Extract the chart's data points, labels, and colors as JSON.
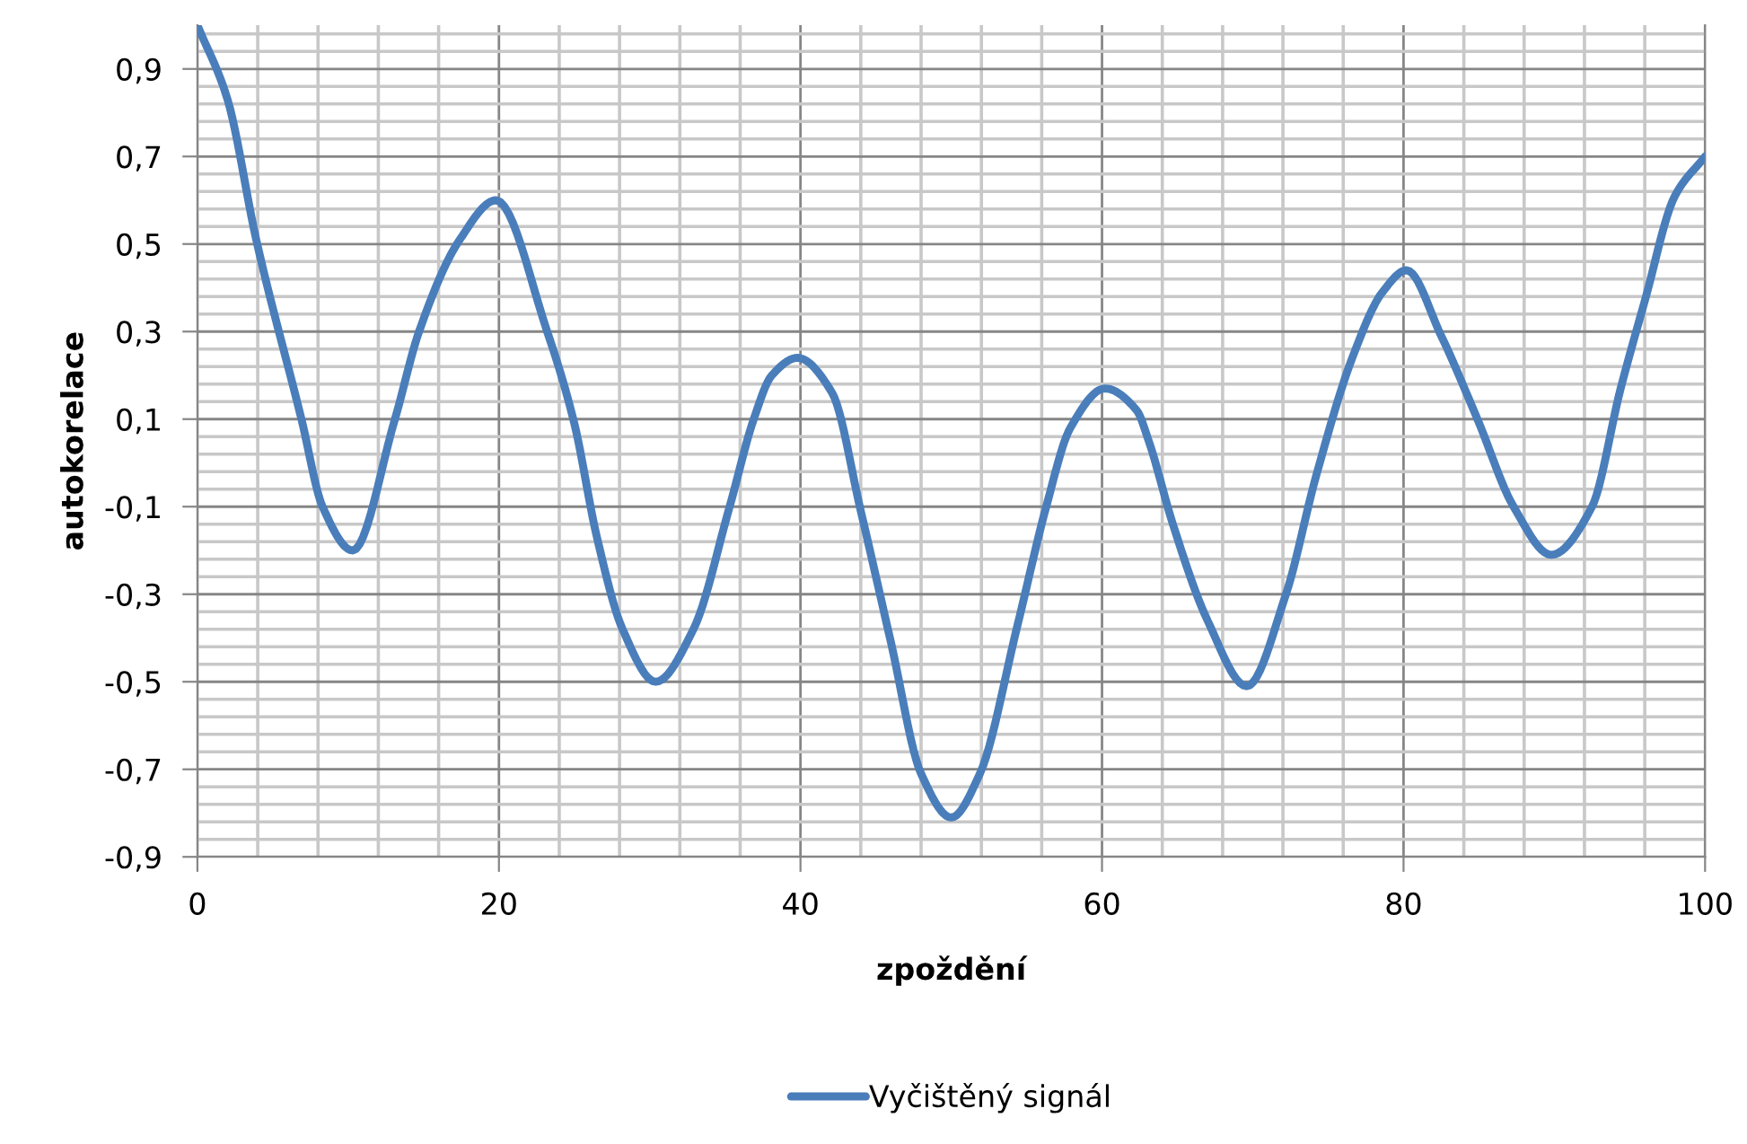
{
  "chart_data": {
    "type": "line",
    "xlabel": "zpoždění",
    "ylabel": "autokorelace",
    "series": [
      {
        "name": "Vyčištěný signál",
        "color": "#4a7ebb",
        "x": [
          0,
          2.0,
          3.9,
          6.9,
          8.3,
          10.3,
          13.1,
          14.7,
          17.4,
          19.8,
          23.2,
          25.0,
          26.5,
          28.2,
          30.4,
          32.9,
          35.3,
          36.9,
          38.1,
          39.8,
          42.1,
          44.0,
          46.0,
          48.0,
          50.0,
          51.9,
          54.4,
          56.3,
          57.9,
          60.2,
          62.3,
          63.1,
          64.7,
          67.0,
          69.6,
          72.2,
          74.2,
          76.6,
          78.6,
          80.2,
          82.5,
          84.9,
          87.3,
          89.8,
          92.5,
          94.4,
          96.0,
          98.0,
          100
        ],
        "values": [
          1.0,
          0.83,
          0.51,
          0.1,
          -0.1,
          -0.2,
          0.1,
          0.3,
          0.51,
          0.6,
          0.3,
          0.09,
          -0.17,
          -0.38,
          -0.5,
          -0.38,
          -0.1,
          0.1,
          0.2,
          0.24,
          0.16,
          -0.11,
          -0.41,
          -0.71,
          -0.81,
          -0.71,
          -0.37,
          -0.1,
          0.08,
          0.17,
          0.12,
          0.05,
          -0.14,
          -0.36,
          -0.51,
          -0.3,
          -0.03,
          0.24,
          0.39,
          0.44,
          0.29,
          0.1,
          -0.1,
          -0.21,
          -0.1,
          0.17,
          0.37,
          0.61,
          0.7
        ]
      }
    ],
    "xlim": [
      0,
      100
    ],
    "ylim": [
      -0.9,
      1.0
    ],
    "xticks": [
      0,
      {
        "value": 4,
        "label": null
      },
      {
        "value": 8,
        "label": null
      },
      {
        "value": 12,
        "label": null
      },
      {
        "value": 16,
        "label": null
      },
      20,
      {
        "value": 24,
        "label": null
      },
      {
        "value": 28,
        "label": null
      },
      {
        "value": 32,
        "label": null
      },
      {
        "value": 36,
        "label": null
      },
      40,
      {
        "value": 44,
        "label": null
      },
      {
        "value": 48,
        "label": null
      },
      {
        "value": 52,
        "label": null
      },
      {
        "value": 56,
        "label": null
      },
      60,
      {
        "value": 64,
        "label": null
      },
      {
        "value": 68,
        "label": null
      },
      {
        "value": 72,
        "label": null
      },
      {
        "value": 76,
        "label": null
      },
      80,
      {
        "value": 84,
        "label": null
      },
      {
        "value": 88,
        "label": null
      },
      {
        "value": 92,
        "label": null
      },
      {
        "value": 96,
        "label": null
      },
      100
    ],
    "yticks": [
      {
        "value": -0.9,
        "label": "-0,9"
      },
      {
        "value": -0.86,
        "label": null
      },
      {
        "value": -0.82,
        "label": null
      },
      {
        "value": -0.78,
        "label": null
      },
      {
        "value": -0.74,
        "label": null
      },
      {
        "value": -0.7,
        "label": "-0,7"
      },
      {
        "value": -0.66,
        "label": null
      },
      {
        "value": -0.62,
        "label": null
      },
      {
        "value": -0.58,
        "label": null
      },
      {
        "value": -0.54,
        "label": null
      },
      {
        "value": -0.5,
        "label": "-0,5"
      },
      {
        "value": -0.46,
        "label": null
      },
      {
        "value": -0.42,
        "label": null
      },
      {
        "value": -0.38,
        "label": null
      },
      {
        "value": -0.34,
        "label": null
      },
      {
        "value": -0.3,
        "label": "-0,3"
      },
      {
        "value": -0.26,
        "label": null
      },
      {
        "value": -0.22,
        "label": null
      },
      {
        "value": -0.18,
        "label": null
      },
      {
        "value": -0.14,
        "label": null
      },
      {
        "value": -0.1,
        "label": "-0,1"
      },
      {
        "value": -0.06,
        "label": null
      },
      {
        "value": -0.02,
        "label": null
      },
      {
        "value": 0.02,
        "label": null
      },
      {
        "value": 0.06,
        "label": null
      },
      {
        "value": 0.1,
        "label": "0,1"
      },
      {
        "value": 0.14,
        "label": null
      },
      {
        "value": 0.18,
        "label": null
      },
      {
        "value": 0.22,
        "label": null
      },
      {
        "value": 0.26,
        "label": null
      },
      {
        "value": 0.3,
        "label": "0,3"
      },
      {
        "value": 0.34,
        "label": null
      },
      {
        "value": 0.38,
        "label": null
      },
      {
        "value": 0.42,
        "label": null
      },
      {
        "value": 0.46,
        "label": null
      },
      {
        "value": 0.5,
        "label": "0,5"
      },
      {
        "value": 0.54,
        "label": null
      },
      {
        "value": 0.58,
        "label": null
      },
      {
        "value": 0.62,
        "label": null
      },
      {
        "value": 0.66,
        "label": null
      },
      {
        "value": 0.7,
        "label": "0,7"
      },
      {
        "value": 0.74,
        "label": null
      },
      {
        "value": 0.78,
        "label": null
      },
      {
        "value": 0.82,
        "label": null
      },
      {
        "value": 0.86,
        "label": null
      },
      {
        "value": 0.9,
        "label": "0,9"
      },
      {
        "value": 0.94,
        "label": null
      },
      {
        "value": 0.98,
        "label": null
      }
    ],
    "grid": true,
    "legend": "bottom",
    "marker": "none",
    "line_style": "solid"
  }
}
